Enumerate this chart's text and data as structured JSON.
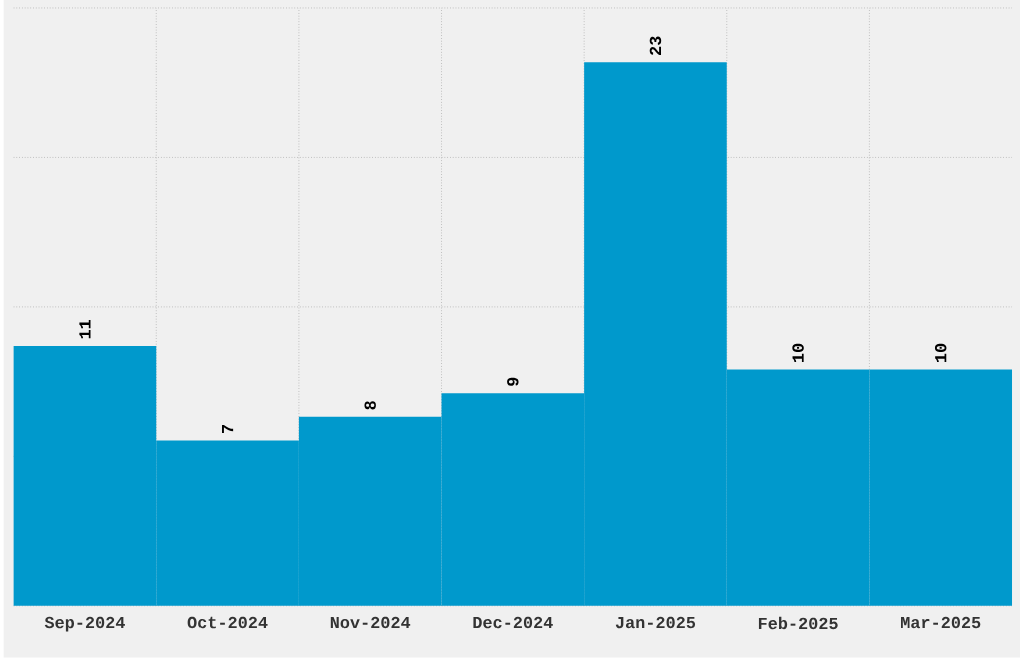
{
  "chart_data": {
    "type": "bar",
    "categories": [
      "Sep-2024",
      "Oct-2024",
      "Nov-2024",
      "Dec-2024",
      "Jan-2025",
      "Feb-2025",
      "Mar-2025"
    ],
    "values": [
      11,
      7,
      8,
      9,
      23,
      10,
      10
    ],
    "color": "#0099cc",
    "ylim": [
      0,
      25.3
    ],
    "yticks": [
      {
        "value": 0,
        "label": null
      },
      {
        "value": 6.325,
        "label": null
      },
      {
        "value": 12.65,
        "label": null
      },
      {
        "value": 18.975,
        "label": null
      },
      {
        "value": 25.3,
        "label": null
      }
    ],
    "tick_labels": "x",
    "grid": true,
    "data_labels": true
  }
}
